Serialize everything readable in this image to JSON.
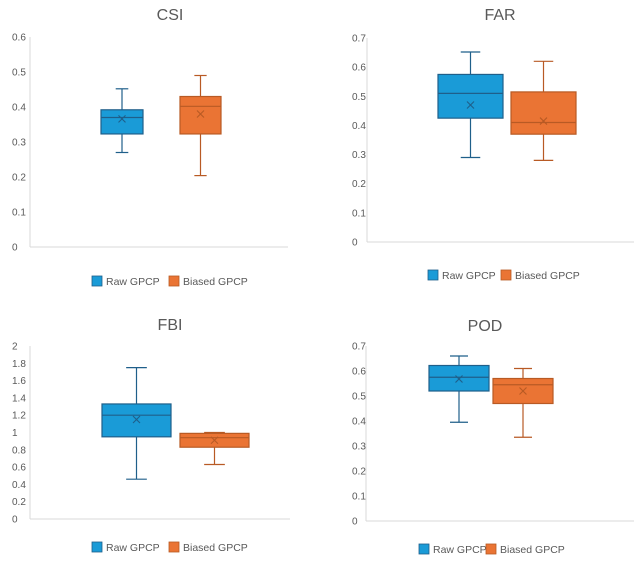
{
  "colors": {
    "raw": "#1a9bd7",
    "raw_edge": "#1f5f8a",
    "biased": "#ea7434",
    "biased_edge": "#b85a24",
    "axis": "#d9d9d9",
    "text": "#595959"
  },
  "legend": {
    "raw_label": "Raw GPCP",
    "biased_label": "Biased GPCP"
  },
  "chart_data": [
    {
      "type": "box",
      "title": "CSI",
      "ylim": [
        0,
        0.6
      ],
      "yticks": [
        "0",
        "0.1",
        "0.2",
        "0.3",
        "0.4",
        "0.5",
        "0.6"
      ],
      "yticks_values": [
        0,
        0.1,
        0.2,
        0.3,
        0.4,
        0.5,
        0.6
      ],
      "series": [
        {
          "name": "Raw GPCP",
          "min": 0.27,
          "q1": 0.323,
          "median": 0.37,
          "q3": 0.392,
          "max": 0.452,
          "mean": 0.366
        },
        {
          "name": "Biased GPCP",
          "min": 0.204,
          "q1": 0.323,
          "median": 0.402,
          "q3": 0.43,
          "max": 0.49,
          "mean": 0.38
        }
      ]
    },
    {
      "type": "box",
      "title": "FAR",
      "ylim": [
        0,
        0.7
      ],
      "yticks": [
        "0",
        "0.1",
        "0.2",
        "0.3",
        "0.4",
        "0.5",
        "0.6",
        "0.7"
      ],
      "yticks_values": [
        0,
        0.1,
        0.2,
        0.3,
        0.4,
        0.5,
        0.6,
        0.7
      ],
      "series": [
        {
          "name": "Raw GPCP",
          "min": 0.29,
          "q1": 0.425,
          "median": 0.51,
          "q3": 0.575,
          "max": 0.652,
          "mean": 0.47
        },
        {
          "name": "Biased GPCP",
          "min": 0.28,
          "q1": 0.37,
          "median": 0.41,
          "q3": 0.515,
          "max": 0.62,
          "mean": 0.415
        }
      ]
    },
    {
      "type": "box",
      "title": "FBI",
      "ylim": [
        0,
        2
      ],
      "yticks": [
        "0",
        "0.2",
        "0.4",
        "0.6",
        "0.8",
        "1",
        "1.2",
        "1.4",
        "1.6",
        "1.8",
        "2"
      ],
      "yticks_values": [
        0,
        0.2,
        0.4,
        0.6,
        0.8,
        1,
        1.2,
        1.4,
        1.6,
        1.8,
        2
      ],
      "series": [
        {
          "name": "Raw GPCP",
          "min": 0.46,
          "q1": 0.95,
          "median": 1.2,
          "q3": 1.33,
          "max": 1.75,
          "mean": 1.15
        },
        {
          "name": "Biased GPCP",
          "min": 0.63,
          "q1": 0.83,
          "median": 0.94,
          "q3": 0.99,
          "max": 1.0,
          "mean": 0.91
        }
      ]
    },
    {
      "type": "box",
      "title": "POD",
      "ylim": [
        0,
        0.7
      ],
      "yticks": [
        "0",
        "0.1",
        "0.2",
        "0.3",
        "0.4",
        "0.5",
        "0.6",
        "0.7"
      ],
      "yticks_values": [
        0,
        0.1,
        0.2,
        0.3,
        0.4,
        0.5,
        0.6,
        0.7
      ],
      "series": [
        {
          "name": "Raw GPCP",
          "min": 0.395,
          "q1": 0.52,
          "median": 0.575,
          "q3": 0.622,
          "max": 0.66,
          "mean": 0.568
        },
        {
          "name": "Biased GPCP",
          "min": 0.335,
          "q1": 0.47,
          "median": 0.545,
          "q3": 0.57,
          "max": 0.61,
          "mean": 0.52
        }
      ]
    }
  ]
}
